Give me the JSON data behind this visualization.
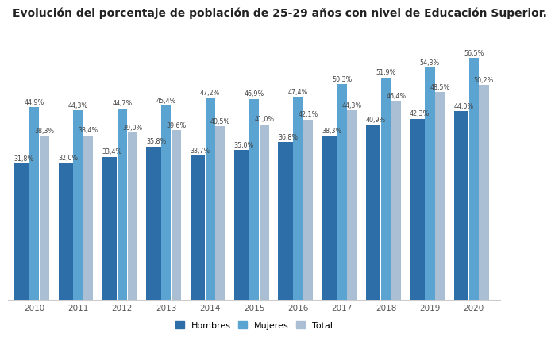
{
  "title": "Evolución del porcentaje de población de 25-29 años con nivel de Educación Superior.",
  "years": [
    "2010",
    "2011",
    "2012",
    "2013",
    "2014",
    "2015",
    "2016",
    "2017",
    "2018",
    "2019",
    "2020"
  ],
  "hombres": [
    31.8,
    32.0,
    33.4,
    35.8,
    33.7,
    35.0,
    36.8,
    38.3,
    40.9,
    42.3,
    44.0
  ],
  "mujeres": [
    44.9,
    44.3,
    44.7,
    45.4,
    47.2,
    46.9,
    47.4,
    50.3,
    51.9,
    54.3,
    56.5
  ],
  "total": [
    38.3,
    38.4,
    39.0,
    39.6,
    40.5,
    41.0,
    42.1,
    44.3,
    46.4,
    48.5,
    50.2
  ],
  "color_hombres": "#2D6DA8",
  "color_mujeres": "#5BA3D0",
  "color_total": "#AABFD4",
  "bar_width": 0.22,
  "bar_gap": 0.005,
  "ylim": [
    0,
    63
  ],
  "legend_labels": [
    "Hombres",
    "Mujeres",
    "Total"
  ],
  "title_fontsize": 10,
  "label_fontsize": 5.8,
  "tick_fontsize": 7.5
}
